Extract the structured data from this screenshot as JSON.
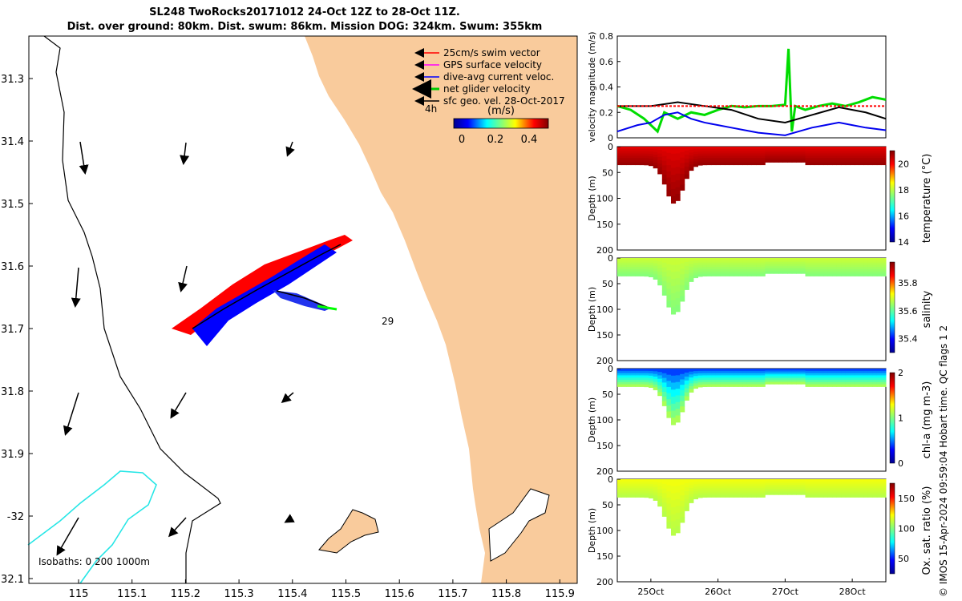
{
  "header": {
    "title_line1": "SL248 TwoRocks20171012 24-Oct 12Z to 28-Oct 11Z.",
    "title_line2": "Dist. over ground: 80km. Dist. swum: 86km. Mission DOG: 324km. Swum: 355km"
  },
  "map": {
    "lon_ticks": [
      "115",
      "115.1",
      "115.2",
      "115.3",
      "115.4",
      "115.5",
      "115.6",
      "115.7",
      "115.8",
      "115.9"
    ],
    "lat_ticks": [
      "31.3",
      "31.4",
      "31.5",
      "31.6",
      "31.7",
      "31.8",
      "31.9",
      "-32",
      "32.1"
    ],
    "legend": [
      {
        "label": "25cm/s swim vector",
        "color": "#ff0000"
      },
      {
        "label": "GPS surface velocity",
        "color": "#ff00ff"
      },
      {
        "label": "dive-avg current veloc.",
        "color": "#0000ff"
      },
      {
        "label": "net glider velocity",
        "color": "#00cc00"
      },
      {
        "label": "sfc geo. vel. 28-Oct-2017",
        "color": "#000000"
      }
    ],
    "time_marker": "4h",
    "colorbar_unit": "(m/s)",
    "colorbar_ticks": [
      "0",
      "0.2",
      "0.4"
    ],
    "day_label": "29",
    "isobaths_label": "Isobaths: 0   200  1000m",
    "colors": {
      "land": "#f9cb9c",
      "isobath_200": "#27e6e6"
    }
  },
  "chart_data": [
    {
      "type": "line",
      "title": "",
      "ylabel": "velocity magnitude (m/s)",
      "ylim": [
        0,
        0.8
      ],
      "y_ticks": [
        "0",
        "0.2",
        "0.4",
        "0.6",
        "0.8"
      ],
      "xlim": [
        24.5,
        28.5
      ],
      "series": [
        {
          "name": "net glider velocity",
          "color": "#00dd00",
          "x": [
            24.5,
            24.7,
            24.9,
            25.1,
            25.2,
            25.4,
            25.6,
            25.8,
            26.0,
            26.2,
            26.4,
            26.6,
            26.8,
            27.0,
            27.05,
            27.1,
            27.15,
            27.3,
            27.5,
            27.7,
            27.9,
            28.1,
            28.3,
            28.5
          ],
          "y": [
            0.25,
            0.22,
            0.15,
            0.05,
            0.2,
            0.15,
            0.2,
            0.18,
            0.22,
            0.25,
            0.24,
            0.25,
            0.25,
            0.26,
            0.7,
            0.05,
            0.25,
            0.22,
            0.25,
            0.27,
            0.25,
            0.28,
            0.32,
            0.3
          ]
        },
        {
          "name": "dive-avg current veloc.",
          "color": "#0000ee",
          "x": [
            24.5,
            24.8,
            25.0,
            25.2,
            25.4,
            25.6,
            25.8,
            26.0,
            26.2,
            26.4,
            26.6,
            26.8,
            27.0,
            27.2,
            27.4,
            27.6,
            27.8,
            28.0,
            28.2,
            28.5
          ],
          "y": [
            0.05,
            0.1,
            0.12,
            0.18,
            0.2,
            0.15,
            0.12,
            0.1,
            0.08,
            0.06,
            0.04,
            0.03,
            0.02,
            0.05,
            0.08,
            0.1,
            0.12,
            0.1,
            0.08,
            0.06
          ]
        },
        {
          "name": "sfc geo. vel.",
          "color": "#000000",
          "x": [
            24.5,
            25.0,
            25.4,
            25.8,
            26.2,
            26.6,
            27.0,
            27.4,
            27.8,
            28.2,
            28.5
          ],
          "y": [
            0.25,
            0.25,
            0.28,
            0.25,
            0.22,
            0.15,
            0.12,
            0.18,
            0.24,
            0.2,
            0.15
          ]
        },
        {
          "name": "swim vector",
          "color": "#ff0000",
          "x": [
            24.5,
            25.0,
            25.5,
            26.0,
            26.5,
            27.0,
            27.5,
            28.0,
            28.5
          ],
          "y": [
            0.25,
            0.25,
            0.25,
            0.25,
            0.25,
            0.25,
            0.25,
            0.25,
            0.25
          ]
        }
      ]
    },
    {
      "type": "heatmap",
      "variable": "temperature (°C)",
      "ylabel": "Depth (m)",
      "y_ticks": [
        "0",
        "50",
        "100",
        "150",
        "200"
      ],
      "ylim": [
        0,
        200
      ],
      "colorbar_range": [
        14,
        21
      ],
      "colorbar_ticks": [
        "14",
        "16",
        "18",
        "20"
      ],
      "surface_value": 20.2,
      "deep_value": 20.8
    },
    {
      "type": "heatmap",
      "variable": "salinity",
      "ylabel": "Depth (m)",
      "y_ticks": [
        "0",
        "50",
        "100",
        "150",
        "200"
      ],
      "ylim": [
        0,
        200
      ],
      "colorbar_range": [
        35.3,
        35.95
      ],
      "colorbar_ticks": [
        "35.4",
        "35.6",
        "35.8"
      ],
      "surface_value": 35.68,
      "deep_value": 35.63
    },
    {
      "type": "heatmap",
      "variable": "chl-a (mg m-3)",
      "ylabel": "Depth (m)",
      "y_ticks": [
        "0",
        "50",
        "100",
        "150",
        "200"
      ],
      "ylim": [
        0,
        200
      ],
      "colorbar_range": [
        0,
        2
      ],
      "colorbar_ticks": [
        "0",
        "1",
        "2"
      ],
      "surface_value": 0.4,
      "deep_value": 1.1
    },
    {
      "type": "heatmap",
      "variable": "Ox. sat. ratio (%)",
      "ylabel": "Depth (m)",
      "y_ticks": [
        "0",
        "50",
        "100",
        "150",
        "200"
      ],
      "ylim": [
        0,
        200
      ],
      "colorbar_range": [
        25,
        175
      ],
      "colorbar_ticks": [
        "50",
        "100",
        "150"
      ],
      "surface_value": 120,
      "deep_value": 110
    }
  ],
  "time_axis": {
    "labels": [
      "25Oct",
      "26Oct",
      "27Oct",
      "28Oct"
    ]
  },
  "footer": {
    "copyright": "© IMOS 15-Apr-2024 09:59:04 Hobart time. QC flags 1  2"
  }
}
